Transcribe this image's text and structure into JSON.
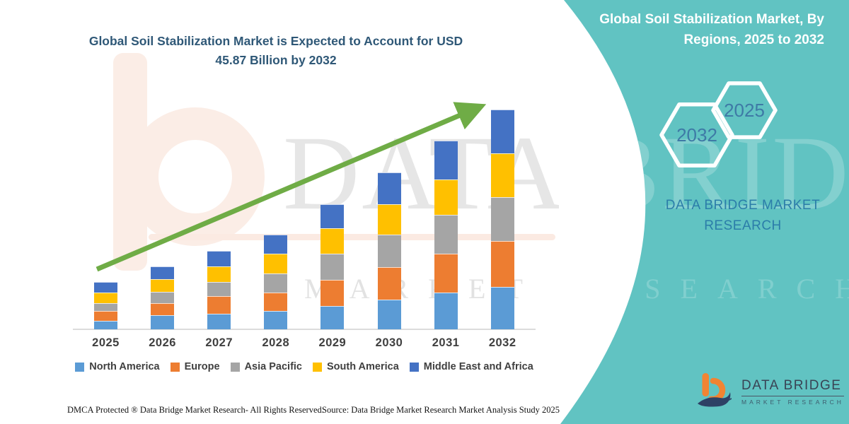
{
  "header": {
    "left_title_line1": "Global Soil Stabilization Market is Expected to Account for USD",
    "left_title_line2": "45.87 Billion by 2032",
    "right_title_line1": "Global Soil Stabilization Market, By",
    "right_title_line2": "Regions, 2025 to 2032"
  },
  "side_panel": {
    "panel_color": "#61C3C2",
    "hexagon_back_label": "2032",
    "hexagon_front_label": "2025",
    "brand_text": "DATA BRIDGE MARKET RESEARCH",
    "brand_text_color": "#2B7DA9"
  },
  "chart_data": {
    "type": "bar",
    "stacked": true,
    "unit": "USD Billion",
    "title": "Global Soil Stabilization Market is Expected to Account for USD 45.87 Billion by 2032",
    "xlabel": "",
    "ylabel": "",
    "grid": false,
    "legend_position": "bottom",
    "categories": [
      "2025",
      "2026",
      "2027",
      "2028",
      "2029",
      "2030",
      "2031",
      "2032"
    ],
    "series": [
      {
        "name": "North America",
        "color": "#5B9BD5",
        "values": [
          1.81,
          2.95,
          3.29,
          3.79,
          4.91,
          6.15,
          7.63,
          8.85
        ]
      },
      {
        "name": "Europe",
        "color": "#ED7D31",
        "values": [
          1.96,
          2.55,
          3.69,
          3.94,
          5.41,
          6.89,
          8.11,
          9.59
        ]
      },
      {
        "name": "Asia Pacific",
        "color": "#A5A5A5",
        "values": [
          1.73,
          2.36,
          2.95,
          3.94,
          5.41,
          6.74,
          8.11,
          9.1
        ]
      },
      {
        "name": "South America",
        "color": "#FFC000",
        "values": [
          2.21,
          2.55,
          3.2,
          4.17,
          5.41,
          6.3,
          7.38,
          9.19
        ]
      },
      {
        "name": "Middle East and Africa",
        "color": "#4472C4",
        "values": [
          2.21,
          2.7,
          3.2,
          3.94,
          4.91,
          6.74,
          8.11,
          9.14
        ]
      }
    ],
    "totals": [
      9.92,
      13.11,
      16.33,
      19.78,
      26.05,
      32.82,
      39.34,
      45.87
    ],
    "annotations": [
      "upward green trend arrow"
    ],
    "trend_arrow_color": "#6FAC46"
  },
  "watermark": {
    "big_text": "DATA BRIDGE",
    "row_text": "MARKET RESEARCH"
  },
  "footer": {
    "dmca": "DMCA Protected ® Data Bridge Market Research-  All Rights Reserved.",
    "source": "Source: Data Bridge Market Research  Market Analysis Study 2025"
  },
  "logo": {
    "name": "DATA BRIDGE",
    "tagline": "MARKET RESEARCH",
    "mark_orange": "#F18432",
    "mark_navy": "#2E4165"
  }
}
